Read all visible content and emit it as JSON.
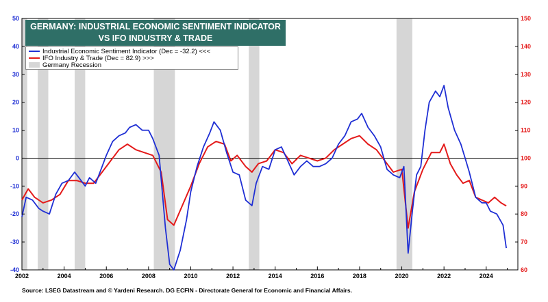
{
  "title_lines": [
    "GERMANY: INDUSTRIAL ECONOMIC SENTIMENT INDICATOR",
    "VS IFO INDUSTRY & TRADE"
  ],
  "legend": {
    "esi": "Industrial Economic Sentiment Indicator (Dec = -32.2) <<<",
    "ifo": "IFO Industry & Trade (Dec = 82.9) >>>",
    "recession": "Germany Recession"
  },
  "source": "Source: LSEG Datastream and © Yardeni Research. DG ECFIN - Directorate General for Economic and Financial Affairs.",
  "colors": {
    "esi": "#1f2fd4",
    "ifo": "#e41a1a",
    "recession": "#d6d6d6",
    "title_bg": "#2f6f67",
    "left_axis": "#1f2fd4",
    "right_axis": "#e41a1a"
  },
  "chart_data": {
    "type": "line",
    "title": "GERMANY: INDUSTRIAL ECONOMIC SENTIMENT INDICATOR VS IFO INDUSTRY & TRADE",
    "x_range": [
      2002,
      2025.5
    ],
    "x_ticks": [
      "2002",
      "2004",
      "2006",
      "2008",
      "2010",
      "2012",
      "2014",
      "2016",
      "2018",
      "2020",
      "2022",
      "2024"
    ],
    "y_left": {
      "range": [
        -40,
        50
      ],
      "ticks": [
        "-40",
        "-30",
        "-20",
        "-10",
        "0",
        "10",
        "20",
        "30",
        "40",
        "50"
      ]
    },
    "y_right": {
      "range": [
        60,
        150
      ],
      "ticks": [
        "60",
        "70",
        "80",
        "90",
        "100",
        "110",
        "120",
        "130",
        "140",
        "150"
      ]
    },
    "zero_line": 0,
    "recessions": [
      [
        2002.0,
        2002.25
      ],
      [
        2002.75,
        2003.25
      ],
      [
        2004.5,
        2005.0
      ],
      [
        2008.25,
        2009.25
      ],
      [
        2012.75,
        2013.25
      ],
      [
        2019.75,
        2020.5
      ]
    ],
    "series": [
      {
        "name": "Industrial Economic Sentiment Indicator (Dec = -32.2) <<<",
        "axis": "left",
        "points": [
          [
            2002.0,
            -21
          ],
          [
            2002.2,
            -14
          ],
          [
            2002.5,
            -15
          ],
          [
            2002.8,
            -18
          ],
          [
            2003.0,
            -19
          ],
          [
            2003.3,
            -20
          ],
          [
            2003.6,
            -13
          ],
          [
            2003.9,
            -9
          ],
          [
            2004.2,
            -8
          ],
          [
            2004.5,
            -5
          ],
          [
            2004.8,
            -8
          ],
          [
            2005.0,
            -10
          ],
          [
            2005.2,
            -7
          ],
          [
            2005.5,
            -9
          ],
          [
            2005.8,
            -3
          ],
          [
            2006.0,
            1
          ],
          [
            2006.3,
            6
          ],
          [
            2006.6,
            8
          ],
          [
            2006.9,
            9
          ],
          [
            2007.1,
            11
          ],
          [
            2007.4,
            12
          ],
          [
            2007.7,
            10
          ],
          [
            2008.0,
            10
          ],
          [
            2008.2,
            7
          ],
          [
            2008.5,
            1
          ],
          [
            2008.8,
            -25
          ],
          [
            2009.0,
            -38
          ],
          [
            2009.2,
            -40
          ],
          [
            2009.5,
            -33
          ],
          [
            2009.8,
            -22
          ],
          [
            2010.0,
            -12
          ],
          [
            2010.3,
            -3
          ],
          [
            2010.6,
            4
          ],
          [
            2010.9,
            9
          ],
          [
            2011.1,
            13
          ],
          [
            2011.4,
            10
          ],
          [
            2011.7,
            2
          ],
          [
            2012.0,
            -5
          ],
          [
            2012.3,
            -6
          ],
          [
            2012.6,
            -15
          ],
          [
            2012.9,
            -17
          ],
          [
            2013.1,
            -9
          ],
          [
            2013.4,
            -3
          ],
          [
            2013.7,
            -4
          ],
          [
            2014.0,
            3
          ],
          [
            2014.3,
            4
          ],
          [
            2014.6,
            -1
          ],
          [
            2014.9,
            -6
          ],
          [
            2015.2,
            -3
          ],
          [
            2015.5,
            -1
          ],
          [
            2015.8,
            -3
          ],
          [
            2016.1,
            -3
          ],
          [
            2016.4,
            -2
          ],
          [
            2016.7,
            0
          ],
          [
            2017.0,
            5
          ],
          [
            2017.3,
            8
          ],
          [
            2017.6,
            13
          ],
          [
            2017.9,
            14
          ],
          [
            2018.1,
            16
          ],
          [
            2018.4,
            11
          ],
          [
            2018.7,
            8
          ],
          [
            2019.0,
            4
          ],
          [
            2019.3,
            -4
          ],
          [
            2019.6,
            -6
          ],
          [
            2019.9,
            -7
          ],
          [
            2020.1,
            -3
          ],
          [
            2020.3,
            -34
          ],
          [
            2020.5,
            -19
          ],
          [
            2020.7,
            -6
          ],
          [
            2020.9,
            -3
          ],
          [
            2021.1,
            10
          ],
          [
            2021.3,
            20
          ],
          [
            2021.6,
            24
          ],
          [
            2021.8,
            22
          ],
          [
            2022.0,
            26
          ],
          [
            2022.2,
            18
          ],
          [
            2022.5,
            10
          ],
          [
            2022.8,
            5
          ],
          [
            2023.0,
            0
          ],
          [
            2023.2,
            -5
          ],
          [
            2023.5,
            -14
          ],
          [
            2023.8,
            -16
          ],
          [
            2024.0,
            -16
          ],
          [
            2024.2,
            -19
          ],
          [
            2024.5,
            -20
          ],
          [
            2024.8,
            -24
          ],
          [
            2024.95,
            -32.2
          ]
        ]
      },
      {
        "name": "IFO Industry & Trade (Dec = 82.9) >>>",
        "axis": "right",
        "points": [
          [
            2002.0,
            85
          ],
          [
            2002.3,
            89
          ],
          [
            2002.6,
            86
          ],
          [
            2003.0,
            84
          ],
          [
            2003.4,
            85
          ],
          [
            2003.8,
            87
          ],
          [
            2004.2,
            92
          ],
          [
            2004.6,
            92
          ],
          [
            2005.0,
            91
          ],
          [
            2005.4,
            91
          ],
          [
            2005.8,
            95
          ],
          [
            2006.2,
            99
          ],
          [
            2006.6,
            103
          ],
          [
            2007.0,
            105
          ],
          [
            2007.4,
            103
          ],
          [
            2007.8,
            102
          ],
          [
            2008.2,
            101
          ],
          [
            2008.6,
            95
          ],
          [
            2008.9,
            78
          ],
          [
            2009.2,
            76
          ],
          [
            2009.6,
            83
          ],
          [
            2010.0,
            90
          ],
          [
            2010.4,
            98
          ],
          [
            2010.8,
            104
          ],
          [
            2011.2,
            106
          ],
          [
            2011.6,
            105
          ],
          [
            2011.9,
            99
          ],
          [
            2012.2,
            101
          ],
          [
            2012.6,
            97
          ],
          [
            2012.9,
            95
          ],
          [
            2013.2,
            98
          ],
          [
            2013.6,
            99
          ],
          [
            2014.0,
            103
          ],
          [
            2014.4,
            102
          ],
          [
            2014.8,
            98
          ],
          [
            2015.2,
            101
          ],
          [
            2015.6,
            100
          ],
          [
            2016.0,
            99
          ],
          [
            2016.4,
            100
          ],
          [
            2016.8,
            103
          ],
          [
            2017.2,
            105
          ],
          [
            2017.6,
            107
          ],
          [
            2018.0,
            108
          ],
          [
            2018.4,
            105
          ],
          [
            2018.8,
            103
          ],
          [
            2019.2,
            99
          ],
          [
            2019.6,
            95
          ],
          [
            2020.0,
            96
          ],
          [
            2020.3,
            75
          ],
          [
            2020.6,
            88
          ],
          [
            2021.0,
            96
          ],
          [
            2021.4,
            102
          ],
          [
            2021.8,
            102
          ],
          [
            2022.0,
            105
          ],
          [
            2022.3,
            98
          ],
          [
            2022.6,
            94
          ],
          [
            2022.9,
            91
          ],
          [
            2023.2,
            92
          ],
          [
            2023.5,
            86
          ],
          [
            2023.8,
            85
          ],
          [
            2024.1,
            84
          ],
          [
            2024.4,
            86
          ],
          [
            2024.7,
            84
          ],
          [
            2024.95,
            82.9
          ]
        ]
      },
      {
        "name": "Germany Recession",
        "type": "shaded-periods"
      }
    ]
  }
}
